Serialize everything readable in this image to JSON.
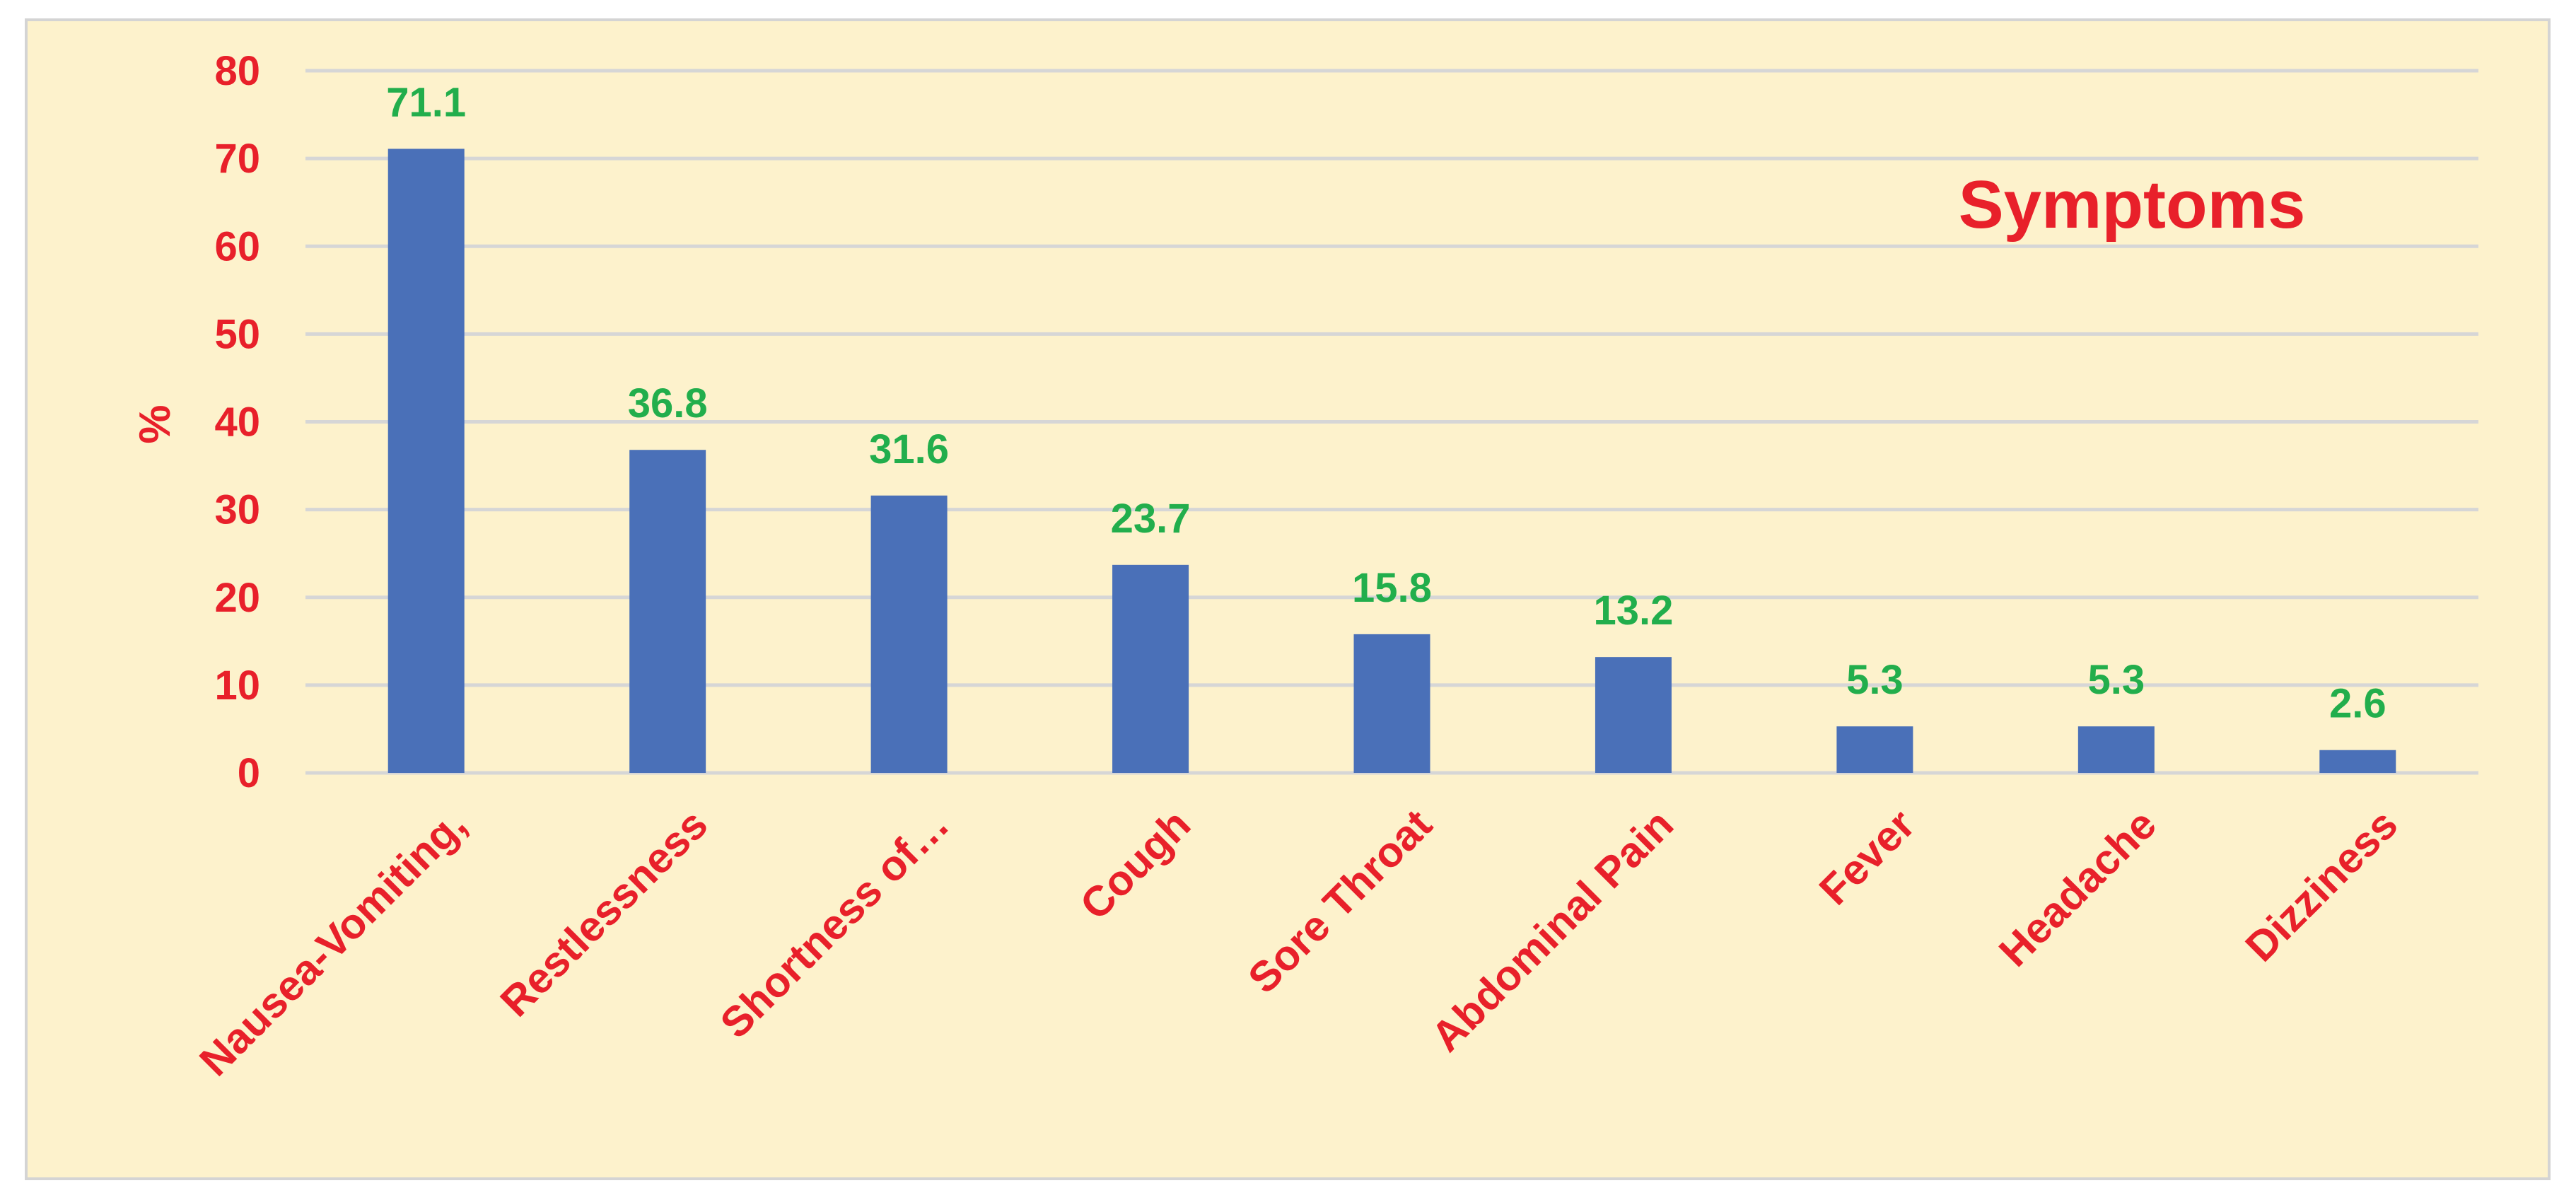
{
  "chart_data": {
    "type": "bar",
    "title": "Symptoms",
    "ylabel": "%",
    "xlabel": "",
    "ylim": [
      0,
      80
    ],
    "yticks": [
      0,
      10,
      20,
      30,
      40,
      50,
      60,
      70,
      80
    ],
    "grid": true,
    "categories": [
      "Nausea-Vomiting,",
      "Restlessness",
      "Shortness of…",
      "Cough",
      "Sore Throat",
      "Abdominal Pain",
      "Fever",
      "Headache",
      "Dizziness"
    ],
    "values": [
      71.1,
      36.8,
      31.6,
      23.7,
      15.8,
      13.2,
      5.3,
      5.3,
      2.6
    ],
    "data_labels": [
      "71.1",
      "36.8",
      "31.6",
      "23.7",
      "15.8",
      "13.2",
      "5.3",
      "5.3",
      "2.6"
    ],
    "colors": {
      "bar": "#4a70b8",
      "axis_text": "#e8202a",
      "data_label": "#22ae4c",
      "title": "#e8202a",
      "grid": "#d6d6d6",
      "background": "#fdf2cc"
    }
  }
}
